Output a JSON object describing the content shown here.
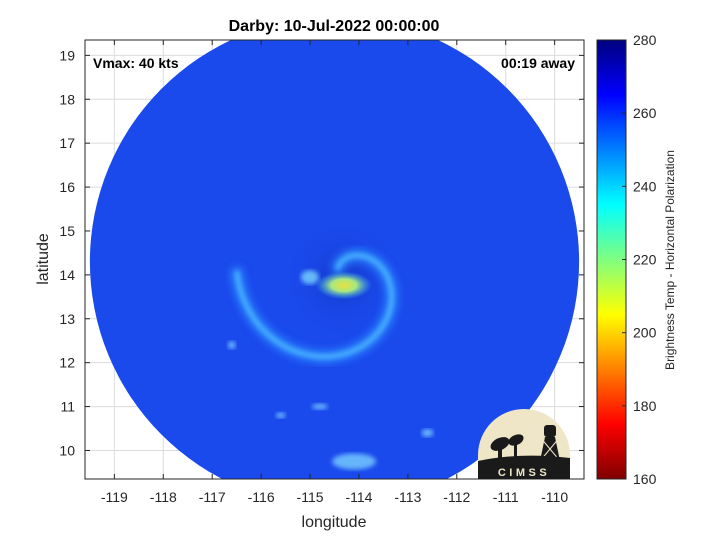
{
  "chart_data": {
    "type": "heatmap",
    "title": "Darby: 10-Jul-2022 00:00:00",
    "xlabel": "longitude",
    "ylabel": "latitude",
    "xlim": [
      -119.6,
      -109.4
    ],
    "ylim": [
      9.35,
      19.35
    ],
    "x_ticks": [
      -119,
      -118,
      -117,
      -116,
      -115,
      -114,
      -113,
      -112,
      -111,
      -110
    ],
    "y_ticks": [
      10,
      11,
      12,
      13,
      14,
      15,
      16,
      17,
      18,
      19
    ],
    "grid": true,
    "annotations": {
      "vmax": "Vmax: 40 kts",
      "time_offset": "00:19 away"
    },
    "colorbar": {
      "label": "Brightness Temp - Horizontal Polarization",
      "ticks": [
        160,
        180,
        200,
        220,
        240,
        260,
        280
      ],
      "range": [
        160,
        280
      ],
      "colormap": [
        "#7f0000",
        "#ff0000",
        "#ff8000",
        "#ffff00",
        "#80ff80",
        "#00ffff",
        "#0080ff",
        "#0000ff",
        "#00007f"
      ]
    },
    "field": {
      "background_value": 263,
      "swath_center": [
        -114.5,
        14.3
      ],
      "swath_radius_deg": 5.0,
      "eye_center": [
        -114.35,
        13.9
      ],
      "min_value": 205
    }
  },
  "logo": {
    "text": "CIMSS"
  },
  "colors": {
    "swath_base": "#1a49ec",
    "band": "#2a8aff",
    "core": "#c8e060"
  }
}
